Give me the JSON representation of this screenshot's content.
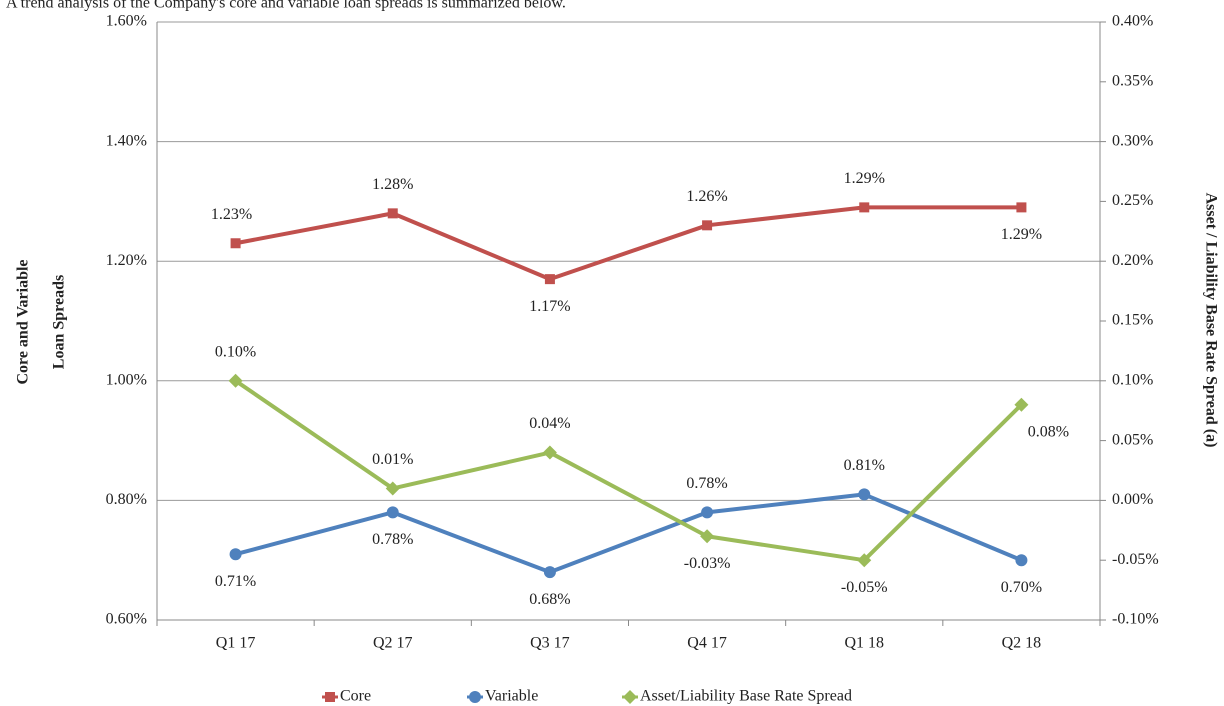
{
  "chart_data": {
    "type": "line",
    "intro": "A trend analysis of the Company's core and variable loan spreads is summarized below.",
    "y_label": [
      "Core and Variable",
      "Loan Spreads"
    ],
    "y2_label": "Asset / Liability Base Rate Spread (a)",
    "categories": [
      "Q1 17",
      "Q2 17",
      "Q3 17",
      "Q4 17",
      "Q1 18",
      "Q2 18"
    ],
    "ylim": [
      0.6,
      1.6
    ],
    "yticks": [
      {
        "value": 0.6,
        "label": "0.60%"
      },
      {
        "value": 0.8,
        "label": "0.80%"
      },
      {
        "value": 1.0,
        "label": "1.00%"
      },
      {
        "value": 1.2,
        "label": "1.20%"
      },
      {
        "value": 1.4,
        "label": "1.40%"
      },
      {
        "value": 1.6,
        "label": "1.60%"
      }
    ],
    "y2lim": [
      -0.1,
      0.4
    ],
    "y2ticks": [
      {
        "value": -0.1,
        "label": "-0.10%"
      },
      {
        "value": -0.05,
        "label": "-0.05%"
      },
      {
        "value": 0.0,
        "label": "0.00%"
      },
      {
        "value": 0.05,
        "label": "0.05%"
      },
      {
        "value": 0.1,
        "label": "0.10%"
      },
      {
        "value": 0.15,
        "label": "0.15%"
      },
      {
        "value": 0.2,
        "label": "0.20%"
      },
      {
        "value": 0.25,
        "label": "0.25%"
      },
      {
        "value": 0.3,
        "label": "0.30%"
      },
      {
        "value": 0.35,
        "label": "0.35%"
      },
      {
        "value": 0.4,
        "label": "0.40%"
      }
    ],
    "grid": true,
    "legend": "bottom",
    "series": [
      {
        "name": "Core",
        "color": "#c0504d",
        "marker": "square",
        "values": [
          1.23,
          1.28,
          1.17,
          1.26,
          1.29,
          1.29
        ],
        "value_labels": [
          "1.23%",
          "1.28%",
          "1.17%",
          "1.26%",
          "1.29%",
          "1.29%"
        ]
      },
      {
        "name": "Variable",
        "color": "#4f81bd",
        "marker": "circle",
        "values": [
          0.71,
          0.78,
          0.68,
          0.78,
          0.81,
          0.7
        ],
        "value_labels": [
          "0.71%",
          "0.78%",
          "0.68%",
          "0.78%",
          "0.81%",
          "0.70%"
        ]
      },
      {
        "name": "Asset/Liability Base Rate Spread",
        "color": "#9bbb59",
        "marker": "diamond",
        "axis": "y2",
        "values": [
          0.1,
          0.01,
          0.04,
          -0.03,
          -0.05,
          0.08
        ],
        "value_labels": [
          "0.10%",
          "0.01%",
          "0.04%",
          "-0.03%",
          "-0.05%",
          "0.08%"
        ]
      }
    ]
  }
}
